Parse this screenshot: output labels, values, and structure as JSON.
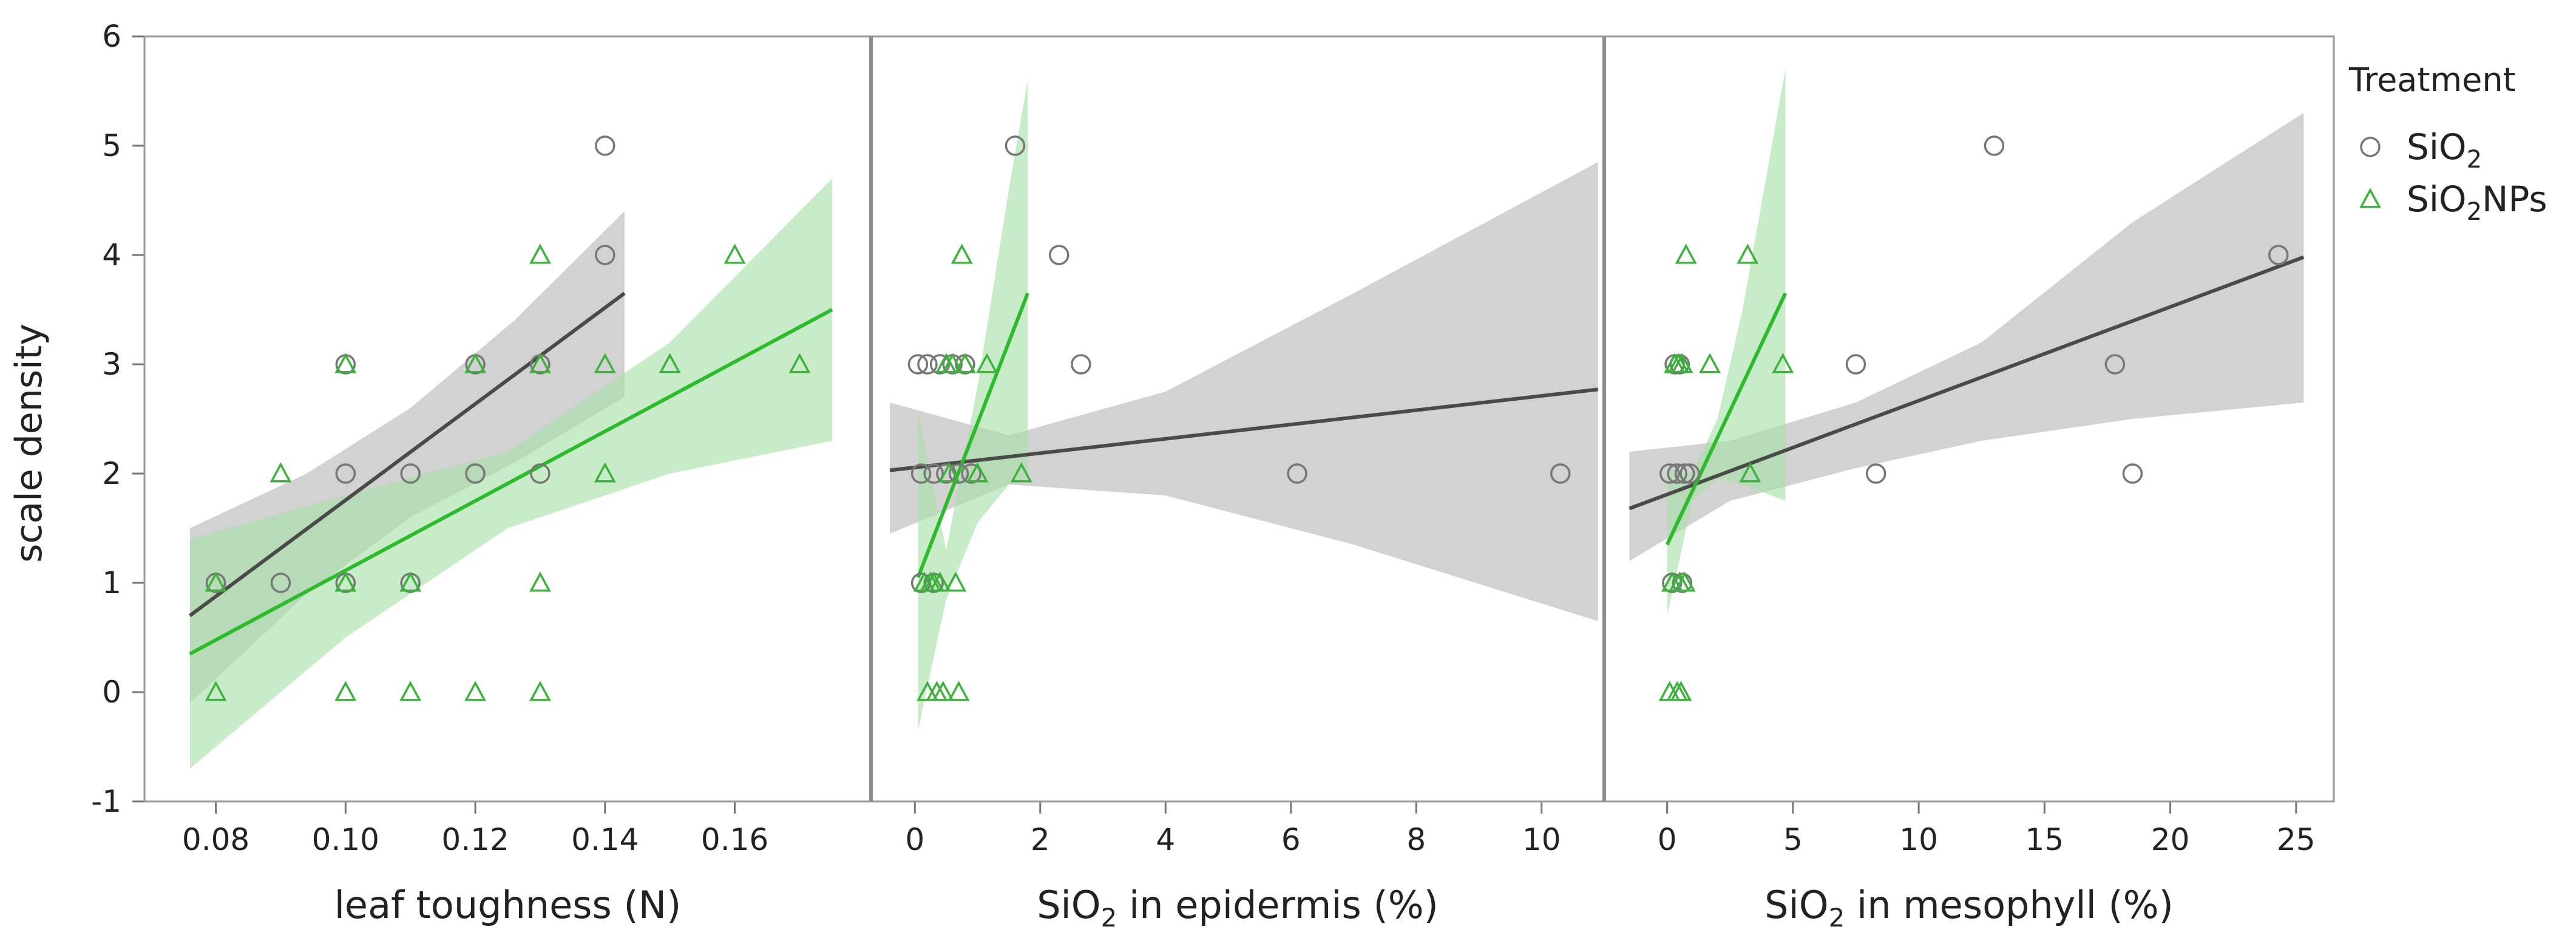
{
  "legend": {
    "title": "Treatment",
    "entries": [
      {
        "name": "SiO",
        "sub": "2",
        "suffix": "",
        "marker": "circle",
        "color": "#777777"
      },
      {
        "name": "SiO",
        "sub": "2",
        "suffix": "NPs",
        "marker": "triangle",
        "color": "#3bb33b"
      }
    ]
  },
  "colors": {
    "sio2_marker": "#777777",
    "sio2_line": "#4a4a4a",
    "sio2_band": "#c8c8c8",
    "np_marker": "#3bb33b",
    "np_line": "#2dbb2d",
    "np_band": "#a6e0a6",
    "frame": "#999999",
    "divider": "#8c8c8c"
  },
  "chart_data": {
    "type": "scatter",
    "ylabel": "scale density",
    "ylim": [
      -1,
      6
    ],
    "yticks": [
      "-1",
      "0",
      "1",
      "2",
      "3",
      "4",
      "5",
      "6"
    ],
    "yticks_values": [
      -1,
      0,
      1,
      2,
      3,
      4,
      5,
      6
    ],
    "panels": [
      {
        "id": "toughness",
        "xlabel": {
          "pre": "leaf toughness (N)",
          "sub": "",
          "post": ""
        },
        "xlim": [
          0.069,
          0.181
        ],
        "xticks_values": [
          0.08,
          0.1,
          0.12,
          0.14,
          0.16
        ],
        "xticks": [
          "0.08",
          "0.10",
          "0.12",
          "0.14",
          "0.16"
        ],
        "series": [
          {
            "name": "SiO2",
            "points": [
              [
                0.08,
                1
              ],
              [
                0.09,
                1
              ],
              [
                0.1,
                2
              ],
              [
                0.1,
                3
              ],
              [
                0.1,
                1
              ],
              [
                0.11,
                2
              ],
              [
                0.11,
                1
              ],
              [
                0.12,
                3
              ],
              [
                0.12,
                2
              ],
              [
                0.13,
                3
              ],
              [
                0.13,
                2
              ],
              [
                0.14,
                5
              ],
              [
                0.14,
                4
              ]
            ],
            "fit": {
              "x": [
                0.076,
                0.143
              ],
              "y": [
                0.7,
                3.65
              ]
            },
            "band": {
              "x": [
                0.076,
                0.094,
                0.11,
                0.126,
                0.143
              ],
              "lower": [
                -0.1,
                0.9,
                1.6,
                2.1,
                2.7
              ],
              "upper": [
                1.5,
                2.0,
                2.6,
                3.4,
                4.4
              ]
            }
          },
          {
            "name": "SiO2NPs",
            "points": [
              [
                0.08,
                0
              ],
              [
                0.08,
                1
              ],
              [
                0.09,
                2
              ],
              [
                0.1,
                3
              ],
              [
                0.1,
                1
              ],
              [
                0.1,
                0
              ],
              [
                0.11,
                1
              ],
              [
                0.11,
                0
              ],
              [
                0.12,
                3
              ],
              [
                0.12,
                0
              ],
              [
                0.13,
                4
              ],
              [
                0.13,
                3
              ],
              [
                0.13,
                1
              ],
              [
                0.13,
                0
              ],
              [
                0.14,
                3
              ],
              [
                0.14,
                2
              ],
              [
                0.15,
                3
              ],
              [
                0.16,
                4
              ],
              [
                0.17,
                3
              ]
            ],
            "fit": {
              "x": [
                0.076,
                0.175
              ],
              "y": [
                0.35,
                3.5
              ]
            },
            "band": {
              "x": [
                0.076,
                0.1,
                0.125,
                0.15,
                0.175
              ],
              "lower": [
                -0.7,
                0.5,
                1.5,
                2.0,
                2.3
              ],
              "upper": [
                1.4,
                1.8,
                2.2,
                3.2,
                4.7
              ]
            }
          }
        ]
      },
      {
        "id": "epidermis",
        "xlabel": {
          "pre": "SiO",
          "sub": "2",
          "post": " in epidermis (%)"
        },
        "xlim": [
          -0.7,
          11.0
        ],
        "xticks_values": [
          0,
          2,
          4,
          6,
          8,
          10
        ],
        "xticks": [
          "0",
          "2",
          "4",
          "6",
          "8",
          "10"
        ],
        "series": [
          {
            "name": "SiO2",
            "points": [
              [
                0.05,
                3
              ],
              [
                0.1,
                2
              ],
              [
                0.1,
                1
              ],
              [
                0.2,
                3
              ],
              [
                0.3,
                2
              ],
              [
                0.3,
                1
              ],
              [
                0.4,
                3
              ],
              [
                0.5,
                2
              ],
              [
                0.6,
                3
              ],
              [
                0.7,
                2
              ],
              [
                0.8,
                3
              ],
              [
                0.9,
                2
              ],
              [
                1.6,
                5
              ],
              [
                2.3,
                4
              ],
              [
                2.65,
                3
              ],
              [
                6.1,
                2
              ],
              [
                10.3,
                2
              ]
            ],
            "fit": {
              "x": [
                -0.4,
                10.9
              ],
              "y": [
                2.03,
                2.77
              ]
            },
            "band": {
              "x": [
                -0.4,
                1.5,
                4.0,
                7.0,
                10.9
              ],
              "lower": [
                1.45,
                1.9,
                1.8,
                1.35,
                0.65
              ],
              "upper": [
                2.65,
                2.35,
                2.75,
                3.65,
                4.85
              ]
            }
          },
          {
            "name": "SiO2NPs",
            "points": [
              [
                0.15,
                1
              ],
              [
                0.2,
                0
              ],
              [
                0.25,
                1
              ],
              [
                0.3,
                1
              ],
              [
                0.35,
                0
              ],
              [
                0.4,
                1
              ],
              [
                0.45,
                0
              ],
              [
                0.5,
                3
              ],
              [
                0.55,
                2
              ],
              [
                0.6,
                3
              ],
              [
                0.65,
                1
              ],
              [
                0.7,
                0
              ],
              [
                0.75,
                4
              ],
              [
                0.8,
                3
              ],
              [
                1.0,
                2
              ],
              [
                1.15,
                3
              ],
              [
                1.7,
                2
              ]
            ],
            "fit": {
              "x": [
                0.05,
                1.8
              ],
              "y": [
                1.05,
                3.65
              ]
            },
            "band": {
              "x": [
                0.05,
                0.5,
                1.0,
                1.5,
                1.8
              ],
              "lower": [
                -0.35,
                0.85,
                1.55,
                1.9,
                1.95
              ],
              "upper": [
                2.55,
                1.3,
                2.8,
                4.6,
                5.6
              ]
            }
          }
        ]
      },
      {
        "id": "mesophyll",
        "xlabel": {
          "pre": "SiO",
          "sub": "2",
          "post": " in mesophyll (%)"
        },
        "xlim": [
          -2.5,
          26.5
        ],
        "xticks_values": [
          0,
          5,
          10,
          15,
          20,
          25
        ],
        "xticks": [
          "0",
          "5",
          "10",
          "15",
          "20",
          "25"
        ],
        "series": [
          {
            "name": "SiO2",
            "points": [
              [
                0.1,
                2
              ],
              [
                0.2,
                1
              ],
              [
                0.3,
                3
              ],
              [
                0.4,
                2
              ],
              [
                0.5,
                3
              ],
              [
                0.6,
                1
              ],
              [
                0.7,
                2
              ],
              [
                0.9,
                2
              ],
              [
                7.5,
                3
              ],
              [
                8.3,
                2
              ],
              [
                13.0,
                5
              ],
              [
                17.8,
                3
              ],
              [
                18.5,
                2
              ],
              [
                24.3,
                4
              ]
            ],
            "fit": {
              "x": [
                -1.5,
                25.3
              ],
              "y": [
                1.68,
                3.98
              ]
            },
            "band": {
              "x": [
                -1.5,
                2.5,
                7.5,
                12.5,
                18.5,
                25.3
              ],
              "lower": [
                1.2,
                1.75,
                2.05,
                2.3,
                2.5,
                2.65
              ],
              "upper": [
                2.2,
                2.3,
                2.65,
                3.2,
                4.3,
                5.3
              ]
            }
          },
          {
            "name": "SiO2NPs",
            "points": [
              [
                0.1,
                0
              ],
              [
                0.2,
                1
              ],
              [
                0.3,
                3
              ],
              [
                0.4,
                0
              ],
              [
                0.45,
                3
              ],
              [
                0.5,
                1
              ],
              [
                0.55,
                0
              ],
              [
                0.6,
                3
              ],
              [
                0.7,
                1
              ],
              [
                0.75,
                4
              ],
              [
                1.7,
                3
              ],
              [
                3.2,
                4
              ],
              [
                3.3,
                2
              ],
              [
                4.6,
                3
              ]
            ],
            "fit": {
              "x": [
                0.0,
                4.7
              ],
              "y": [
                1.35,
                3.65
              ]
            },
            "band": {
              "x": [
                0.0,
                1.0,
                2.0,
                3.0,
                4.7
              ],
              "lower": [
                0.7,
                1.75,
                1.95,
                1.9,
                1.75
              ],
              "upper": [
                2.05,
                2.0,
                2.5,
                3.5,
                5.7
              ]
            }
          }
        ]
      }
    ]
  }
}
